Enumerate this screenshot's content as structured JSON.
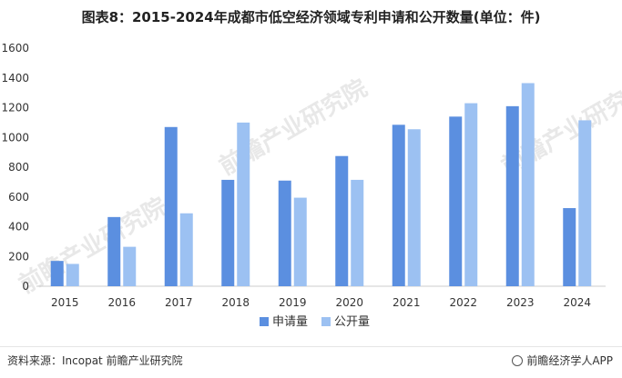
{
  "page": {
    "title": "图表8：2015-2024年成都市低空经济领域专利申请和公开数量(单位：件)",
    "source": "资料来源：Incopat 前瞻产业研究院",
    "credit": "前瞻经济学人APP",
    "watermark": "前瞻产业研究院"
  },
  "colors": {
    "series1": "#5b8fe0",
    "series2": "#9cc1f2",
    "axis": "#cccccc",
    "text": "#333333"
  },
  "chart_data": {
    "type": "bar",
    "title": "图表8：2015-2024年成都市低空经济领域专利申请和公开数量(单位：件)",
    "categories": [
      "2015",
      "2016",
      "2017",
      "2018",
      "2019",
      "2020",
      "2021",
      "2022",
      "2023",
      "2024"
    ],
    "series": [
      {
        "name": "申请量",
        "values": [
          170,
          465,
          1070,
          715,
          710,
          875,
          1085,
          1140,
          1210,
          525
        ]
      },
      {
        "name": "公开量",
        "values": [
          150,
          265,
          490,
          1100,
          595,
          715,
          1055,
          1230,
          1365,
          1115
        ]
      }
    ],
    "ylim": [
      0,
      1600
    ],
    "yticks": [
      0,
      200,
      400,
      600,
      800,
      1000,
      1200,
      1400,
      1600
    ],
    "grid": false,
    "legend": "bottom-center"
  }
}
